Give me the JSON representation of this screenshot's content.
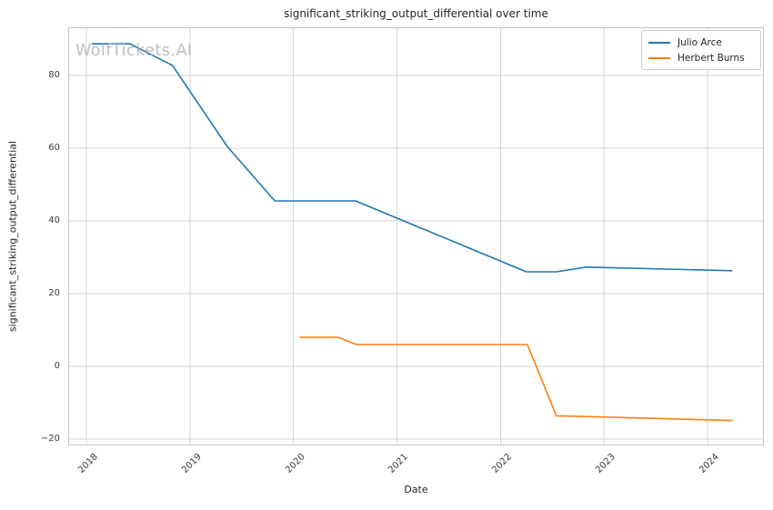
{
  "watermark": "WolfTickets.AI",
  "colors": {
    "grid": "#d6d6d6",
    "spine": "#c4c4c4",
    "tick_text": "#3b3b3b",
    "title_text": "#262626",
    "watermark_text": "#aeaeb4"
  },
  "chart_data": {
    "type": "line",
    "title": "significant_striking_output_differential over time",
    "xlabel": "Date",
    "ylabel": "significant_striking_output_differential",
    "grid": true,
    "legend_position": "upper right",
    "x_unit": "decimal_year",
    "x_ticks": [
      2018,
      2019,
      2020,
      2021,
      2022,
      2023,
      2024
    ],
    "x_tick_rotation_deg": 45,
    "y_ticks": [
      -20,
      0,
      20,
      40,
      60,
      80
    ],
    "xlim": [
      2017.824,
      2024.545
    ],
    "ylim": [
      -21.75,
      93.25
    ],
    "series": [
      {
        "name": "Julio Arce",
        "color": "#1f77b4",
        "x": [
          2018.05,
          2018.42,
          2018.83,
          2019.36,
          2019.82,
          2020.6,
          2022.25,
          2022.54,
          2022.83,
          2024.24
        ],
        "y": [
          88.7,
          88.7,
          82.8,
          60.5,
          45.5,
          45.5,
          26.0,
          26.0,
          27.3,
          26.3
        ]
      },
      {
        "name": "Herbert Burns",
        "color": "#ff7f0e",
        "x": [
          2020.06,
          2020.43,
          2020.61,
          2022.26,
          2022.54,
          2022.83,
          2024.24
        ],
        "y": [
          8.0,
          8.0,
          6.0,
          6.0,
          -13.6,
          -13.8,
          -14.9
        ]
      }
    ]
  }
}
